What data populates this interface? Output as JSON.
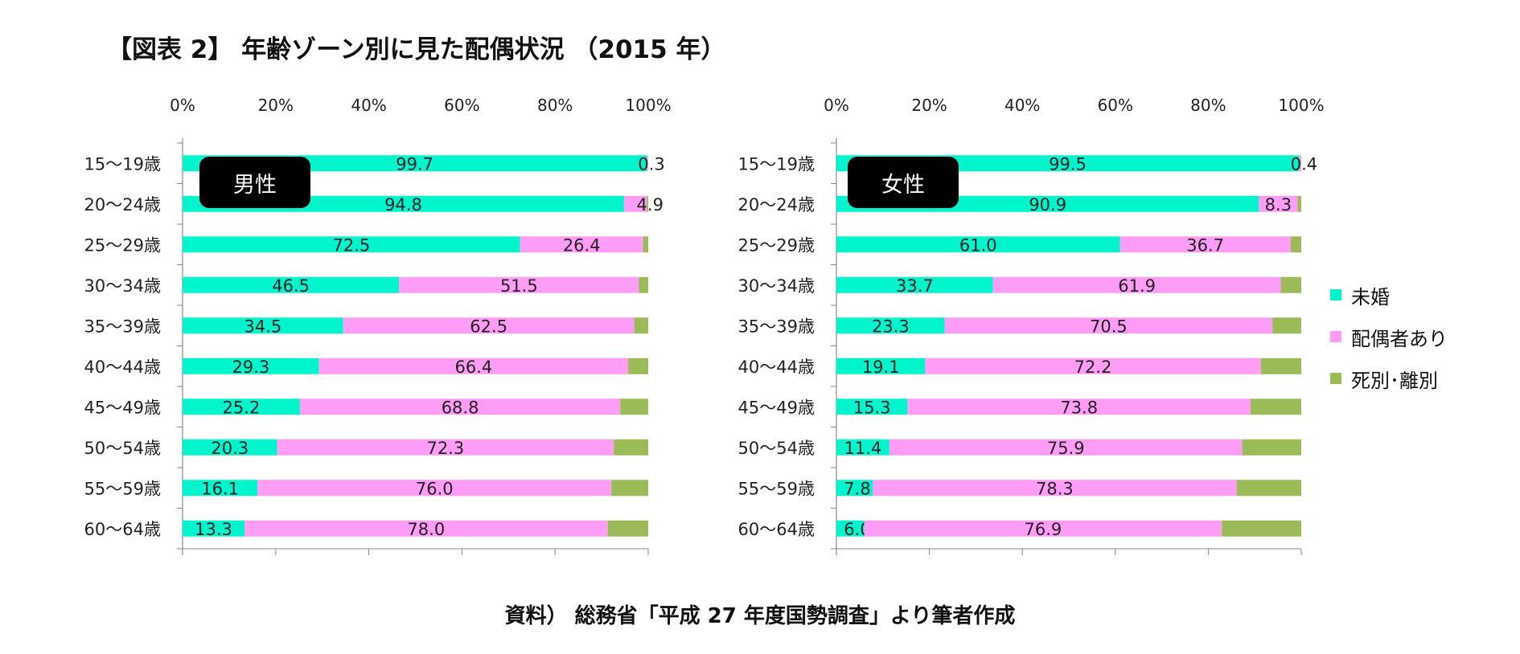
{
  "title": "【図表 2】 年齢ゾーン別に見た配偶状況 （2015 年）",
  "source": "資料） 総務省「平成 27 年度国勢調査」より筆者作成",
  "chart_data": {
    "type": "bar",
    "orientation": "horizontal",
    "stacked": "percent",
    "axis_tick_labels": [
      "0%",
      "20%",
      "40%",
      "60%",
      "80%",
      "100%"
    ],
    "xlim": [
      0,
      100
    ],
    "categories": [
      "15～19歳",
      "20～24歳",
      "25～29歳",
      "30～34歳",
      "35～39歳",
      "40～44歳",
      "45～49歳",
      "50～54歳",
      "55～59歳",
      "60～64歳"
    ],
    "legend": {
      "position": "right",
      "items": [
        {
          "name": "未婚",
          "color": "#00f5cc"
        },
        {
          "name": "配偶者あり",
          "color": "#ff9cf6"
        },
        {
          "name": "死別･離別",
          "color": "#9bbb59"
        }
      ]
    },
    "panels": [
      {
        "badge": "男性",
        "series": [
          {
            "name": "未婚",
            "values": [
              99.7,
              94.8,
              72.5,
              46.5,
              34.5,
              29.3,
              25.2,
              20.3,
              16.1,
              13.3
            ]
          },
          {
            "name": "配偶者あり",
            "values": [
              0.3,
              4.9,
              26.4,
              51.5,
              62.5,
              66.4,
              68.8,
              72.3,
              76.0,
              78.0
            ]
          },
          {
            "name": "死別･離別",
            "values": [
              0.0,
              0.3,
              1.1,
              2.0,
              3.0,
              4.3,
              6.0,
              7.4,
              7.9,
              8.7
            ]
          }
        ],
        "data_labels": [
          [
            "99.7",
            "0.3",
            null
          ],
          [
            "94.8",
            "4.9",
            null
          ],
          [
            "72.5",
            "26.4",
            null
          ],
          [
            "46.5",
            "51.5",
            null
          ],
          [
            "34.5",
            "62.5",
            null
          ],
          [
            "29.3",
            "66.4",
            null
          ],
          [
            "25.2",
            "68.8",
            null
          ],
          [
            "20.3",
            "72.3",
            null
          ],
          [
            "16.1",
            "76.0",
            null
          ],
          [
            "13.3",
            "78.0",
            null
          ]
        ]
      },
      {
        "badge": "女性",
        "series": [
          {
            "name": "未婚",
            "values": [
              99.5,
              90.9,
              61.0,
              33.7,
              23.3,
              19.1,
              15.3,
              11.4,
              7.8,
              6.0
            ]
          },
          {
            "name": "配偶者あり",
            "values": [
              0.4,
              8.3,
              36.7,
              61.9,
              70.5,
              72.2,
              73.8,
              75.9,
              78.3,
              76.9
            ]
          },
          {
            "name": "死別･離別",
            "values": [
              0.1,
              0.8,
              2.3,
              4.4,
              6.2,
              8.7,
              10.9,
              12.7,
              13.9,
              17.1
            ]
          }
        ],
        "data_labels": [
          [
            "99.5",
            "0.4",
            null
          ],
          [
            "90.9",
            "8.3",
            null
          ],
          [
            "61.0",
            "36.7",
            null
          ],
          [
            "33.7",
            "61.9",
            null
          ],
          [
            "23.3",
            "70.5",
            null
          ],
          [
            "19.1",
            "72.2",
            null
          ],
          [
            "15.3",
            "73.8",
            null
          ],
          [
            "11.4",
            "75.9",
            null
          ],
          [
            "7.8",
            "78.3",
            null
          ],
          [
            "6.0",
            "76.9",
            null
          ]
        ]
      }
    ]
  }
}
